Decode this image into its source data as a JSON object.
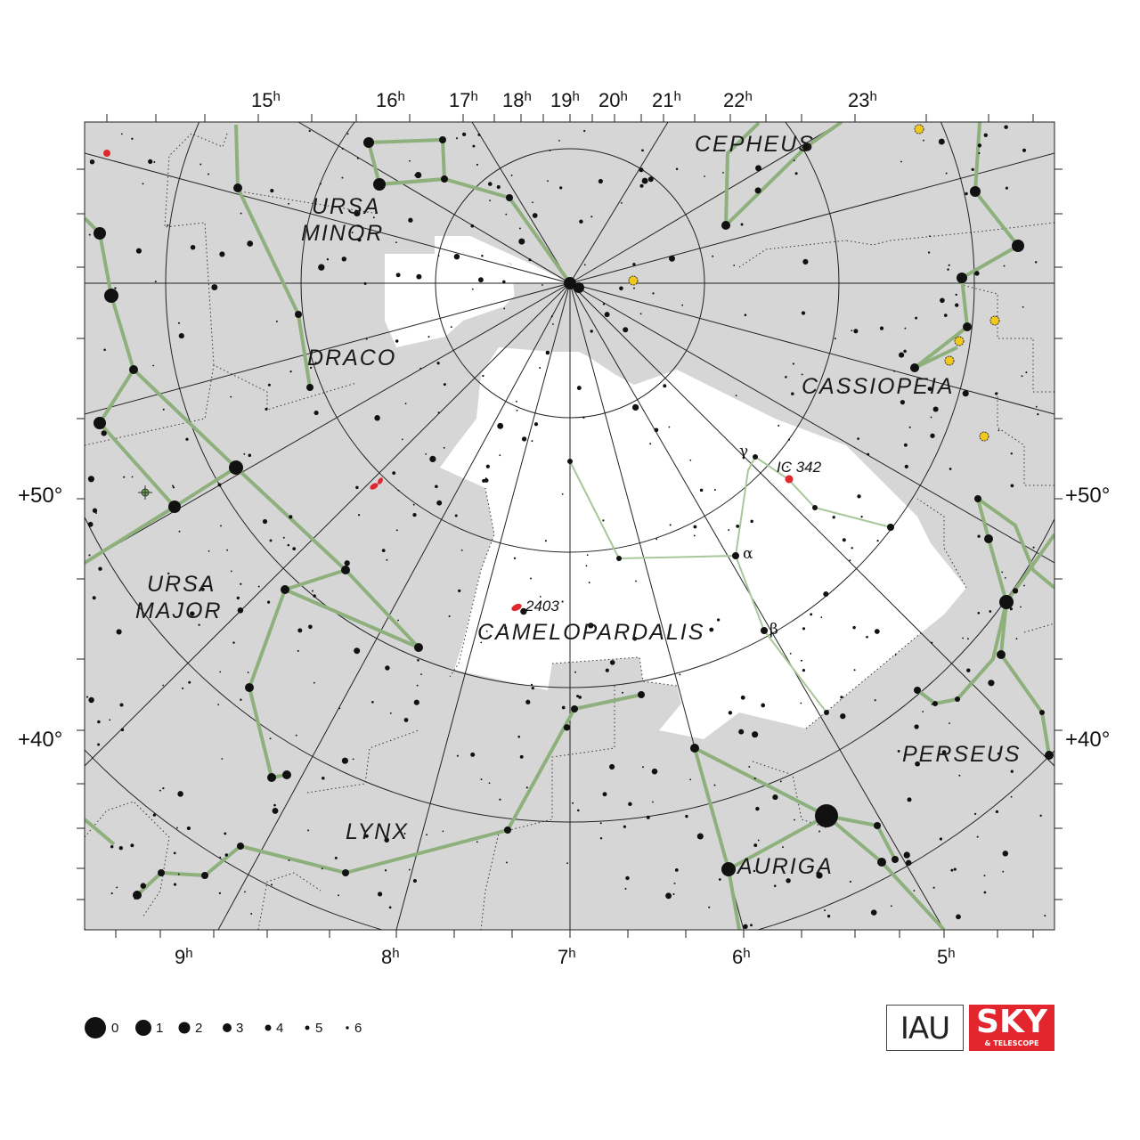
{
  "map": {
    "ra_labels_top": [
      "15",
      "16",
      "17",
      "18",
      "19",
      "20",
      "21",
      "22",
      "23"
    ],
    "ra_labels_bottom": [
      "9",
      "8",
      "7",
      "6",
      "5"
    ],
    "ra_unit": "h",
    "dec_labels": [
      "+50°",
      "+40°"
    ],
    "constellations": [
      "CEPHEUS",
      "URSA",
      "MINOR",
      "DRACO",
      "CASSIOPEIA",
      "URSA",
      "MAJOR",
      "CAMELOPARDALIS",
      "PERSEUS",
      "LYNX",
      "AURIGA"
    ],
    "objects": {
      "ic342": "IC 342",
      "ngc2403": "2403"
    },
    "greek": {
      "gamma": "γ",
      "alpha": "α",
      "beta": "β"
    },
    "colors": {
      "background": "#d6d6d6",
      "highlight": "#ffffff",
      "lines": "#8eb07c",
      "grid": "#222222",
      "galaxy": "#e0282c",
      "variable": "#f2c81c"
    }
  },
  "legend": {
    "title_text": "",
    "magnitudes": [
      "0",
      "1",
      "2",
      "3",
      "4",
      "5",
      "6"
    ]
  },
  "logos": {
    "iau": "IAU",
    "sky": "SKY",
    "sky_sub": "& TELESCOPE"
  }
}
